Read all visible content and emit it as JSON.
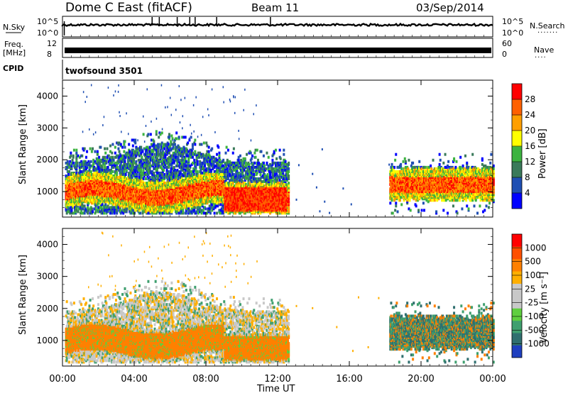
{
  "header": {
    "title": "Dome C East (fitACF)",
    "beam": "Beam 11",
    "date": "03/Sep/2014"
  },
  "left_labels": {
    "nsky": "N.Sky",
    "freq": "Freq.",
    "freq_unit": "[MHz]",
    "cpid": "CPID"
  },
  "right_labels": {
    "nsearch": "N.Search",
    "nave": "Nave"
  },
  "cpid_value": "twofsound 3501",
  "x_axis": {
    "label": "Time UT",
    "ticks": [
      "00:00",
      "04:00",
      "08:00",
      "12:00",
      "16:00",
      "20:00",
      "00:00"
    ]
  },
  "colors": {
    "power_scale": [
      "#0000ff",
      "#1f4fb3",
      "#3a7a5a",
      "#3cb340",
      "#ffff00",
      "#ff9f00",
      "#ff6000",
      "#ff0000"
    ],
    "velocity_scale": [
      "#1f3fbf",
      "#2f6f6f",
      "#3f9f6f",
      "#5fcf3f",
      "#c8c8c8",
      "#c8c8c8",
      "#ffaf00",
      "#ff8000",
      "#ff5000",
      "#ff0000"
    ]
  },
  "chart_data": [
    {
      "type": "line",
      "name": "noise",
      "left_ticks": [
        "10^5",
        "10^0"
      ],
      "right_ticks": [
        "10^5",
        "10^0"
      ],
      "xlim": [
        0,
        24
      ]
    },
    {
      "type": "line",
      "name": "frequency",
      "left_ticks": [
        "12",
        "8"
      ],
      "right_ticks": [
        "60",
        "0"
      ],
      "xlim": [
        0,
        24
      ]
    },
    {
      "type": "heatmap",
      "ylabel": "Slant Range [km]",
      "yticks": [
        1000,
        2000,
        3000,
        4000
      ],
      "ylim": [
        200,
        4500
      ],
      "xlim": [
        0,
        24
      ],
      "colorbar": {
        "label": "Power [dB]",
        "ticks": [
          "28",
          "24",
          "20",
          "16",
          "12",
          "8",
          "4"
        ],
        "range": [
          0,
          32
        ]
      }
    },
    {
      "type": "heatmap",
      "ylabel": "Slant Range [km]",
      "yticks": [
        1000,
        2000,
        3000,
        4000
      ],
      "ylim": [
        200,
        4500
      ],
      "xlim": [
        0,
        24
      ],
      "colorbar": {
        "label": "Velocity [m s⁻¹]",
        "ticks": [
          "1000",
          "500",
          "100",
          "25",
          "-25",
          "-100",
          "-500",
          "-1000"
        ]
      }
    }
  ]
}
